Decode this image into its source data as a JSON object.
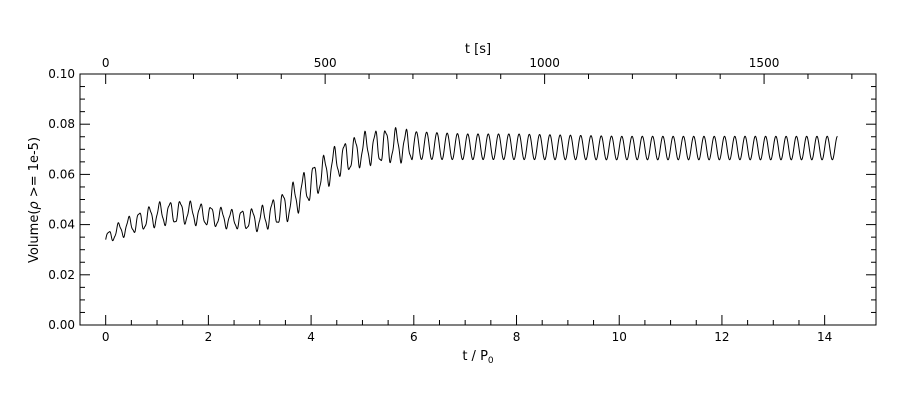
{
  "chart_data": {
    "type": "line",
    "xlabel_main": "t / P",
    "xlabel_sub": "0",
    "xlabel_top": "t [s]",
    "ylabel_prefix": "Volume(",
    "ylabel_rho": "ρ",
    "ylabel_suffix": " >= 1e-5)",
    "xlim": [
      -0.5,
      15.0
    ],
    "ylim": [
      0.0,
      0.1
    ],
    "x_ticks": [
      0,
      2,
      4,
      6,
      8,
      10,
      12,
      14
    ],
    "x_tick_labels": [
      "0",
      "2",
      "4",
      "6",
      "8",
      "10",
      "12",
      "14"
    ],
    "y_ticks": [
      0.0,
      0.02,
      0.04,
      0.06,
      0.08,
      0.1
    ],
    "y_tick_labels": [
      "0.00",
      "0.02",
      "0.04",
      "0.06",
      "0.08",
      "0.10"
    ],
    "top_axis": {
      "seconds_per_unit": 117.0,
      "ticks": [
        0,
        500,
        1000,
        1500
      ],
      "tick_labels": [
        "0",
        "500",
        "1000",
        "1500"
      ]
    },
    "grid": false,
    "legend": "none",
    "series": [
      {
        "color": "#000000",
        "x_range": [
          0.0,
          14.25
        ],
        "oscillation_period": 0.2,
        "envelope_x": [
          0.0,
          0.1,
          0.5,
          1.0,
          1.5,
          2.0,
          2.5,
          3.0,
          3.5,
          4.0,
          4.5,
          5.0,
          5.5,
          6.0,
          7.0,
          8.0,
          10.0,
          12.0,
          14.25
        ],
        "envelope_low": [
          0.032,
          0.033,
          0.036,
          0.039,
          0.04,
          0.039,
          0.038,
          0.037,
          0.04,
          0.049,
          0.058,
          0.063,
          0.064,
          0.065,
          0.065,
          0.065,
          0.065,
          0.065,
          0.065
        ],
        "envelope_high": [
          0.036,
          0.039,
          0.044,
          0.049,
          0.05,
          0.048,
          0.046,
          0.047,
          0.054,
          0.064,
          0.072,
          0.077,
          0.079,
          0.078,
          0.077,
          0.077,
          0.076,
          0.076,
          0.076
        ]
      }
    ]
  }
}
